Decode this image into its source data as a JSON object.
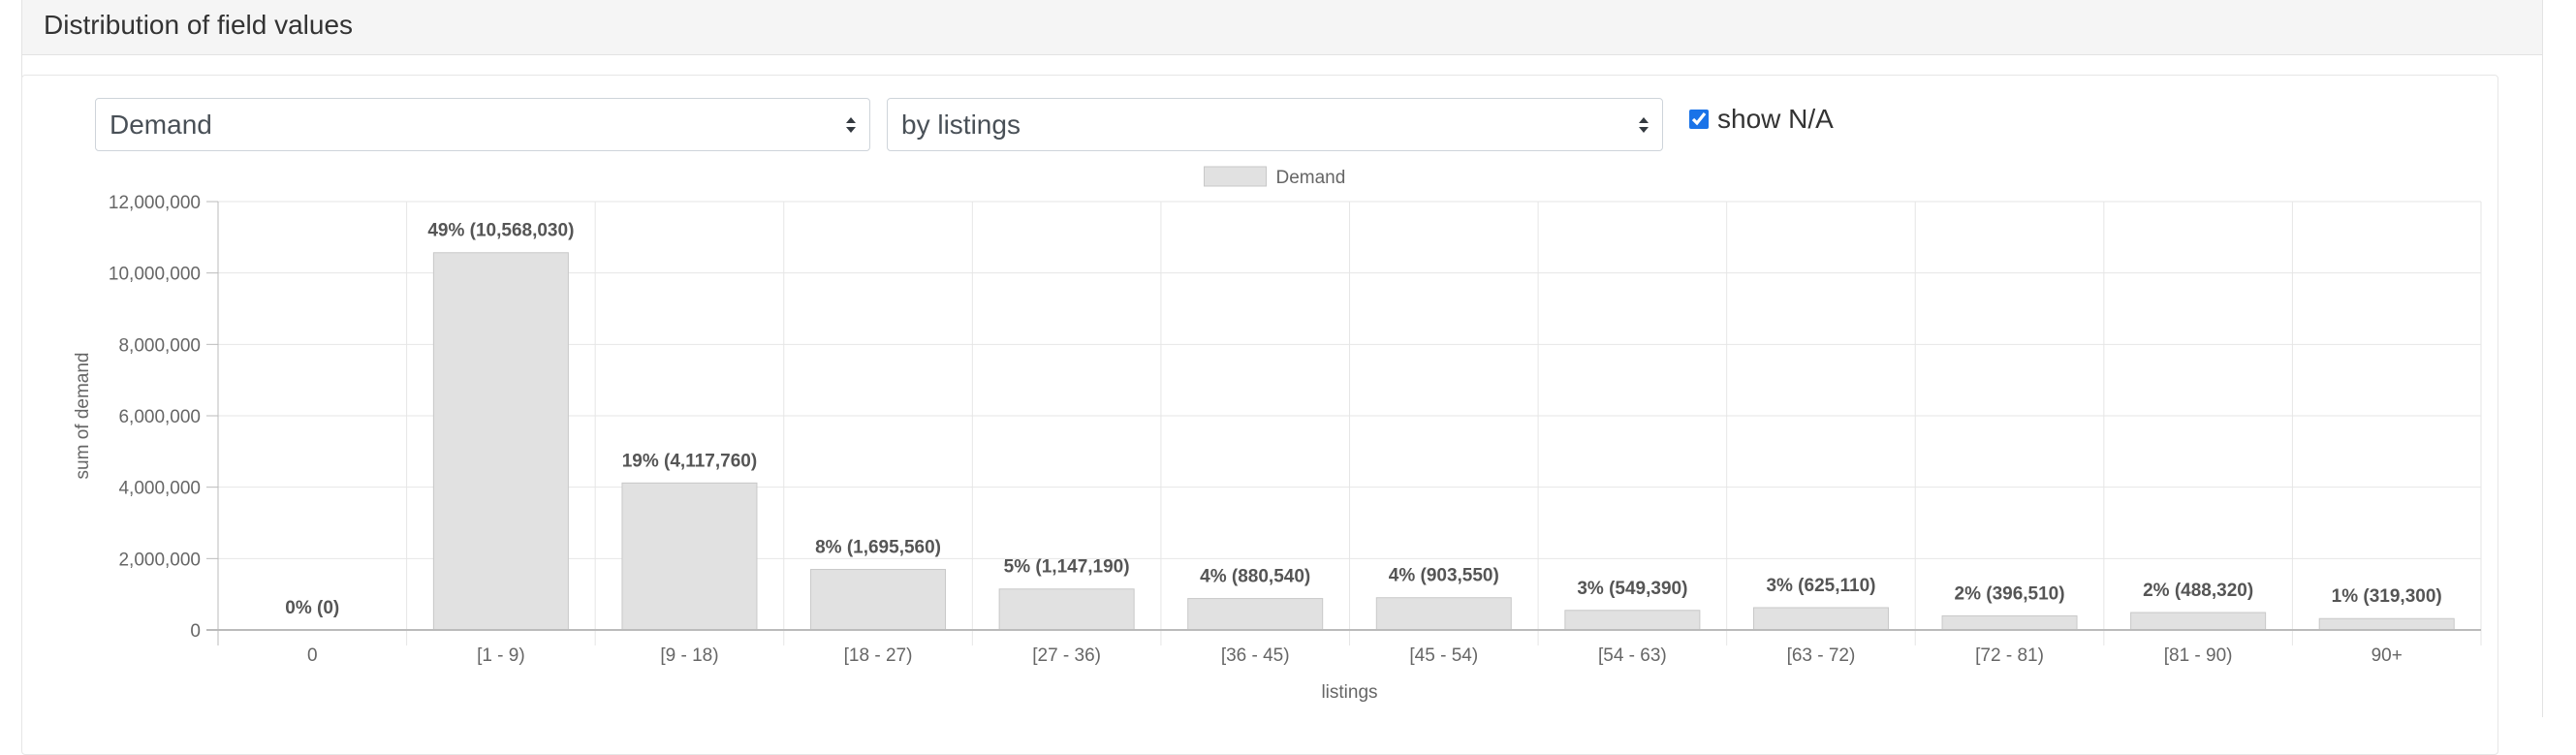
{
  "panel": {
    "title": "Distribution of field values"
  },
  "controls": {
    "field_select": {
      "value": "Demand"
    },
    "group_select": {
      "value": "by listings"
    },
    "show_na": {
      "label": "show N/A",
      "checked": true
    }
  },
  "colors": {
    "bar_fill": "#e1e1e1",
    "bar_stroke": "#c8c8c8",
    "grid": "#e6e6e6",
    "axis": "#bbbbbb",
    "text": "#666666",
    "data_label": "#555555"
  },
  "chart_data": {
    "type": "bar",
    "legend": {
      "position": "top-center"
    },
    "xlabel": "listings",
    "ylabel": "sum of demand",
    "ylim": [
      0,
      12000000
    ],
    "yticks": [
      0,
      2000000,
      4000000,
      6000000,
      8000000,
      10000000,
      12000000
    ],
    "ytick_labels": [
      "0",
      "2,000,000",
      "4,000,000",
      "6,000,000",
      "8,000,000",
      "10,000,000",
      "12,000,000"
    ],
    "grid": true,
    "categories": [
      "0",
      "[1 - 9)",
      "[9 - 18)",
      "[18 - 27)",
      "[27 - 36)",
      "[36 - 45)",
      "[45 - 54)",
      "[54 - 63)",
      "[63 - 72)",
      "[72 - 81)",
      "[81 - 90)",
      "90+"
    ],
    "series": [
      {
        "name": "Demand",
        "values": [
          0,
          10568030,
          4117760,
          1695560,
          1147190,
          880540,
          903550,
          549390,
          625110,
          396510,
          488320,
          319300
        ],
        "data_labels": [
          "0% (0)",
          "49% (10,568,030)",
          "19% (4,117,760)",
          "8% (1,695,560)",
          "5% (1,147,190)",
          "4% (880,540)",
          "4% (903,550)",
          "3% (549,390)",
          "3% (625,110)",
          "2% (396,510)",
          "2% (488,320)",
          "1% (319,300)"
        ]
      }
    ]
  }
}
